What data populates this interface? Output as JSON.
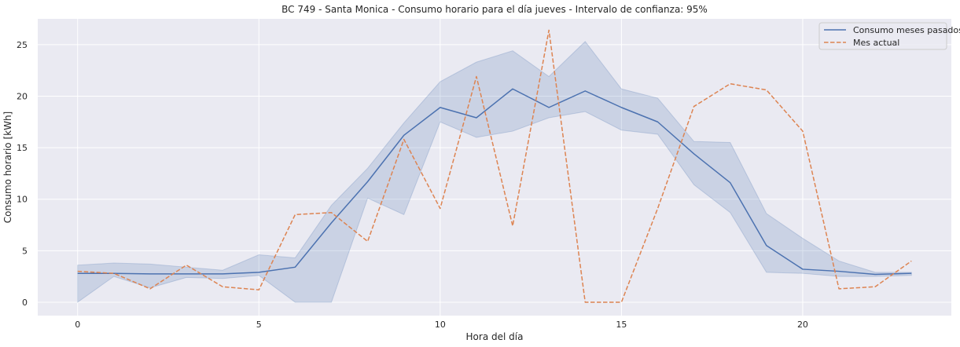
{
  "chart_data": {
    "type": "line",
    "title": "BC 749 - Santa Monica - Consumo horario para el día jueves - Intervalo de confianza: 95%",
    "xlabel": "Hora del día",
    "ylabel": "Consumo horario [kWh]",
    "xlim": [
      -1.1,
      24.1
    ],
    "ylim": [
      -1.3,
      27.5
    ],
    "xticks": [
      0,
      5,
      10,
      15,
      20
    ],
    "yticks": [
      0,
      5,
      10,
      15,
      20,
      25
    ],
    "grid": true,
    "legend_position": "top-right",
    "x": [
      0,
      1,
      2,
      3,
      4,
      5,
      6,
      7,
      8,
      9,
      10,
      11,
      12,
      13,
      14,
      15,
      16,
      17,
      18,
      19,
      20,
      21,
      22,
      23
    ],
    "series": [
      {
        "name": "Consumo meses pasados",
        "style": "solid",
        "color": "#4c72b0",
        "values": [
          2.8,
          2.8,
          2.75,
          2.75,
          2.75,
          2.9,
          3.4,
          7.7,
          11.7,
          16.2,
          18.9,
          17.9,
          20.7,
          18.9,
          20.5,
          18.9,
          17.5,
          14.4,
          11.6,
          5.5,
          3.2,
          3.0,
          2.7,
          2.8
        ],
        "ci_lower": [
          0.0,
          2.5,
          1.4,
          2.4,
          2.3,
          2.6,
          0.0,
          0.0,
          10.1,
          8.5,
          17.5,
          16.0,
          16.6,
          17.9,
          18.5,
          16.7,
          16.3,
          11.4,
          8.7,
          2.9,
          2.8,
          2.5,
          2.5,
          2.6
        ],
        "ci_upper": [
          3.6,
          3.8,
          3.7,
          3.4,
          3.1,
          4.6,
          4.3,
          9.4,
          13.0,
          17.4,
          21.4,
          23.3,
          24.4,
          21.9,
          25.3,
          20.7,
          19.8,
          15.6,
          15.5,
          8.6,
          6.2,
          4.0,
          2.9,
          2.9
        ]
      },
      {
        "name": "Mes actual",
        "style": "dashed",
        "color": "#dd8452",
        "values": [
          3.0,
          2.8,
          1.3,
          3.6,
          1.5,
          1.2,
          8.5,
          8.7,
          5.9,
          15.8,
          9.1,
          21.9,
          7.4,
          26.4,
          0.0,
          0.0,
          9.1,
          19.0,
          21.2,
          20.6,
          16.6,
          1.3,
          1.5,
          4.0
        ]
      }
    ]
  }
}
